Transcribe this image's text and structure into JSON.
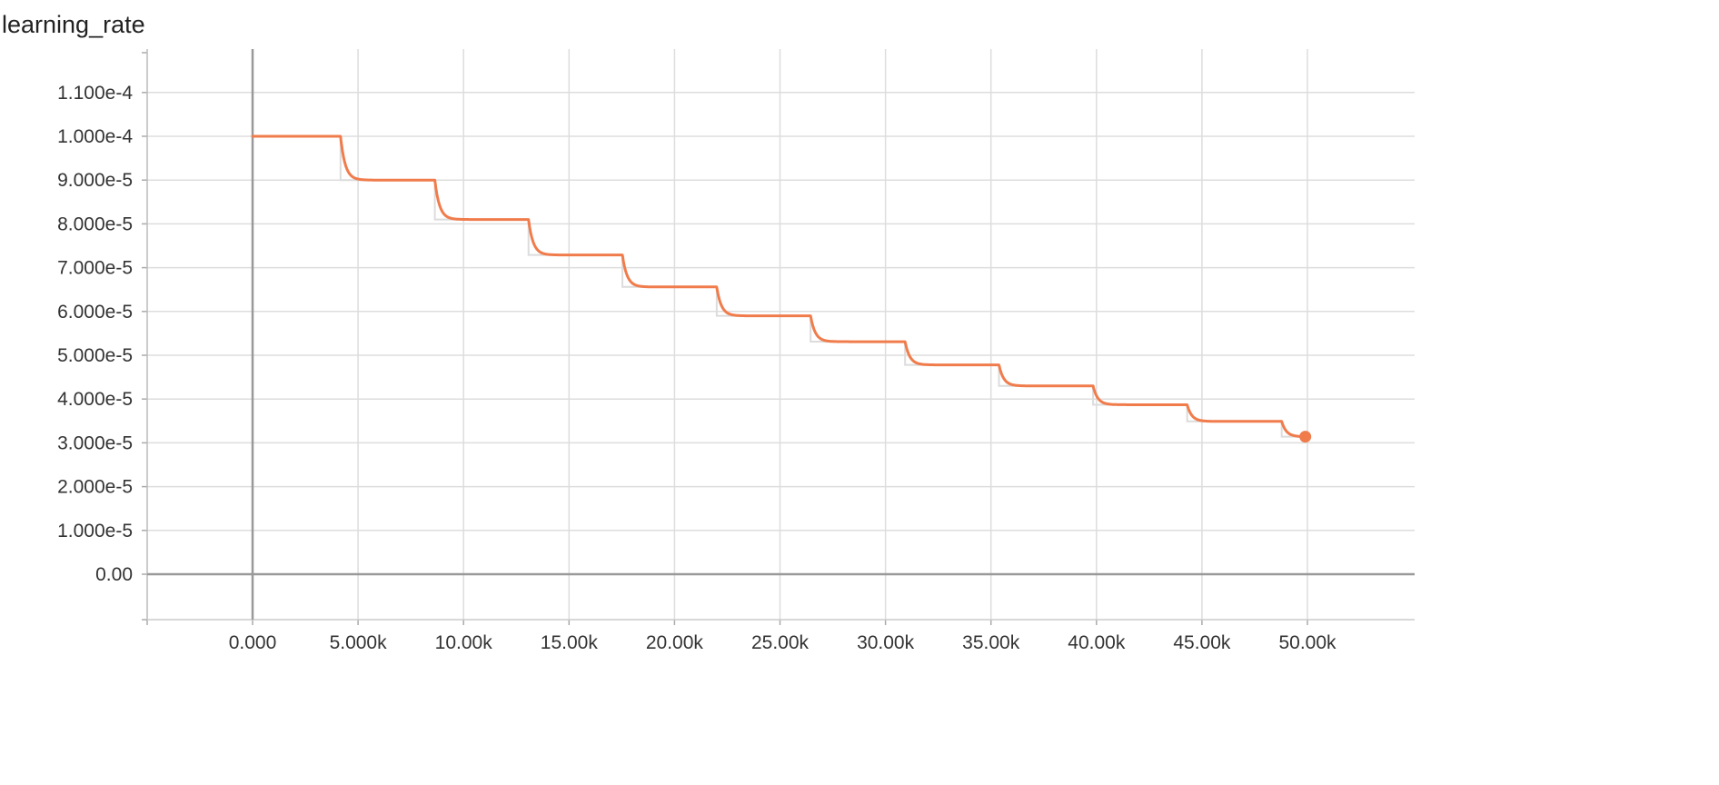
{
  "chart_data": {
    "type": "line",
    "title": "learning_rate",
    "xlabel": "",
    "ylabel": "",
    "xlim": [
      -5000,
      50000
    ],
    "ylim": [
      -1e-05,
      0.00012
    ],
    "x_ticks": [
      0,
      5000,
      10000,
      15000,
      20000,
      25000,
      30000,
      35000,
      40000,
      45000,
      50000
    ],
    "x_tick_labels": [
      "0.000",
      "5.000k",
      "10.00k",
      "15.00k",
      "20.00k",
      "25.00k",
      "30.00k",
      "35.00k",
      "40.00k",
      "45.00k",
      "50.00k"
    ],
    "y_ticks": [
      0,
      1e-05,
      2e-05,
      3e-05,
      4e-05,
      5e-05,
      6e-05,
      7e-05,
      8e-05,
      9e-05,
      0.0001,
      0.00011
    ],
    "y_tick_labels": [
      "0.00",
      "1.000e-5",
      "2.000e-5",
      "3.000e-5",
      "4.000e-5",
      "5.000e-5",
      "6.000e-5",
      "7.000e-5",
      "8.000e-5",
      "9.000e-5",
      "1.000e-4",
      "1.100e-4"
    ],
    "grid": true,
    "series": [
      {
        "color": "#f07c4c",
        "shadow_color": "#dcdcdc",
        "staircase": {
          "step_x": [
            4170,
            8640,
            13080,
            17530,
            22000,
            26450,
            30930,
            35380,
            39840,
            44300,
            48780
          ],
          "levels": [
            0.0001,
            9e-05,
            8.1e-05,
            7.29e-05,
            6.56e-05,
            5.9e-05,
            5.31e-05,
            4.78e-05,
            4.3e-05,
            3.87e-05,
            3.49e-05,
            3.14e-05
          ]
        },
        "last_point": {
          "x": 49900,
          "y": 3.14e-05
        }
      }
    ]
  }
}
